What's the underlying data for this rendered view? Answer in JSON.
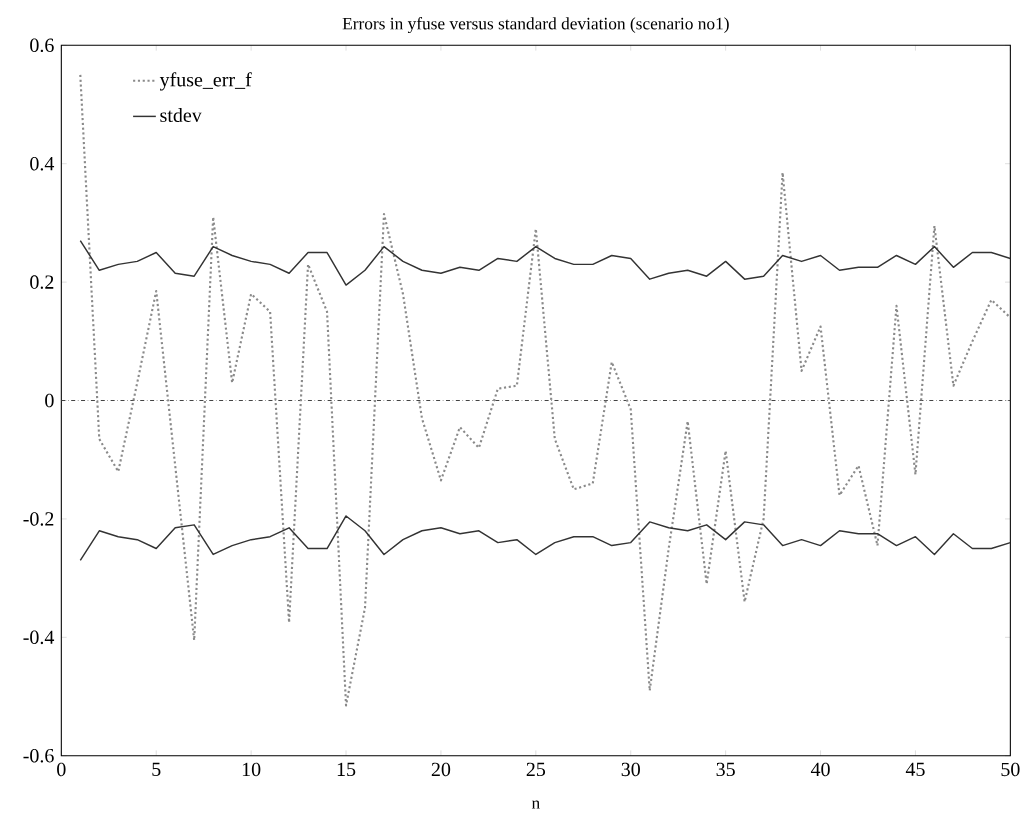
{
  "chart_data": {
    "type": "line",
    "title": "Errors in yfuse versus standard deviation (scenario no1)",
    "xlabel": "n",
    "x": [
      1,
      2,
      3,
      4,
      5,
      6,
      7,
      8,
      9,
      10,
      11,
      12,
      13,
      14,
      15,
      16,
      17,
      18,
      19,
      20,
      21,
      22,
      23,
      24,
      25,
      26,
      27,
      28,
      29,
      30,
      31,
      32,
      33,
      34,
      35,
      36,
      37,
      38,
      39,
      40,
      41,
      42,
      43,
      44,
      45,
      46,
      47,
      48,
      49,
      50
    ],
    "series": [
      {
        "name": "yfuse_err_f",
        "color": "#8a8a8a",
        "line_style": "dotted",
        "values": [
          0.55,
          -0.065,
          -0.12,
          0.03,
          0.185,
          -0.11,
          -0.405,
          0.31,
          0.03,
          0.18,
          0.15,
          -0.375,
          0.23,
          0.15,
          -0.515,
          -0.35,
          0.315,
          0.18,
          -0.03,
          -0.135,
          -0.045,
          -0.08,
          0.02,
          0.025,
          0.29,
          -0.065,
          -0.15,
          -0.14,
          0.065,
          -0.015,
          -0.49,
          -0.25,
          -0.035,
          -0.31,
          -0.085,
          -0.34,
          -0.2,
          0.385,
          0.05,
          0.125,
          -0.16,
          -0.11,
          -0.245,
          0.16,
          -0.125,
          0.295,
          0.025,
          0.1,
          0.17,
          0.14
        ]
      },
      {
        "name": "stdev",
        "color": "#333333",
        "line_style": "solid",
        "values": [
          0.27,
          0.22,
          0.23,
          0.235,
          0.25,
          0.215,
          0.21,
          0.26,
          0.245,
          0.235,
          0.23,
          0.215,
          0.25,
          0.25,
          0.195,
          0.22,
          0.26,
          0.235,
          0.22,
          0.215,
          0.225,
          0.22,
          0.24,
          0.235,
          0.26,
          0.24,
          0.23,
          0.23,
          0.245,
          0.24,
          0.205,
          0.215,
          0.22,
          0.21,
          0.235,
          0.205,
          0.21,
          0.245,
          0.235,
          0.245,
          0.22,
          0.225,
          0.225,
          0.245,
          0.23,
          0.26,
          0.225,
          0.25,
          0.25,
          0.24
        ]
      },
      {
        "color": "#333333",
        "line_style": "solid",
        "values": [
          -0.27,
          -0.22,
          -0.23,
          -0.235,
          -0.25,
          -0.215,
          -0.21,
          -0.26,
          -0.245,
          -0.235,
          -0.23,
          -0.215,
          -0.25,
          -0.25,
          -0.195,
          -0.22,
          -0.26,
          -0.235,
          -0.22,
          -0.215,
          -0.225,
          -0.22,
          -0.24,
          -0.235,
          -0.26,
          -0.24,
          -0.23,
          -0.23,
          -0.245,
          -0.24,
          -0.205,
          -0.215,
          -0.22,
          -0.21,
          -0.235,
          -0.205,
          -0.21,
          -0.245,
          -0.235,
          -0.245,
          -0.22,
          -0.225,
          -0.225,
          -0.245,
          -0.23,
          -0.26,
          -0.225,
          -0.25,
          -0.25,
          -0.24
        ]
      }
    ],
    "ref_lines": [
      {
        "axis": "y",
        "value": 0,
        "color": "#444444"
      }
    ],
    "xlim": [
      0,
      50
    ],
    "ylim": [
      -0.6,
      0.6
    ],
    "xticks": [
      0,
      5,
      10,
      15,
      20,
      25,
      30,
      35,
      40,
      45,
      50
    ],
    "yticks": [
      -0.6,
      -0.4,
      -0.2,
      0,
      0.2,
      0.4,
      0.6
    ],
    "grid": false,
    "legend": "top left",
    "marker": "none"
  }
}
